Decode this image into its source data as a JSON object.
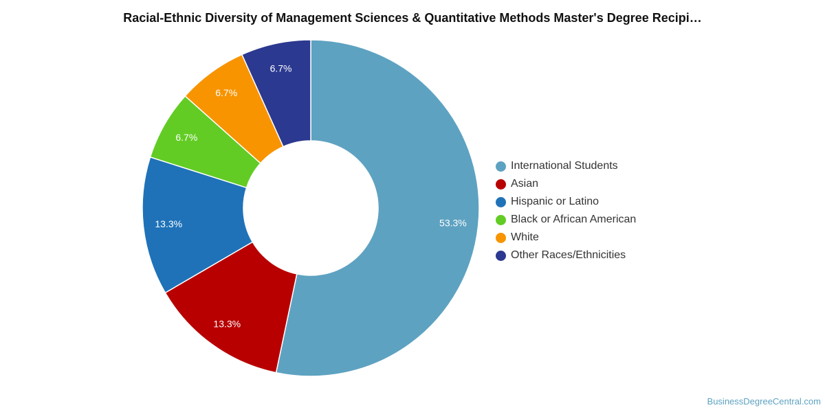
{
  "chart_data": {
    "type": "pie",
    "title": "Racial-Ethnic Diversity of Management Sciences & Quantitative Methods Master's Degree Recipi…",
    "legend_position": "right",
    "donut": true,
    "slices": [
      {
        "name": "International Students",
        "value": 53.3,
        "label": "53.3%",
        "color": "#5ea2c1"
      },
      {
        "name": "Asian",
        "value": 13.3,
        "label": "13.3%",
        "color": "#b80000"
      },
      {
        "name": "Hispanic or Latino",
        "value": 13.3,
        "label": "13.3%",
        "color": "#1f72b8"
      },
      {
        "name": "Black or African American",
        "value": 6.7,
        "label": "6.7%",
        "color": "#62cc24"
      },
      {
        "name": "White",
        "value": 6.7,
        "label": "6.7%",
        "color": "#f79400"
      },
      {
        "name": "Other Races/Ethnicities",
        "value": 6.7,
        "label": "6.7%",
        "color": "#2b3990"
      }
    ]
  },
  "watermark": "BusinessDegreeCentral.com"
}
